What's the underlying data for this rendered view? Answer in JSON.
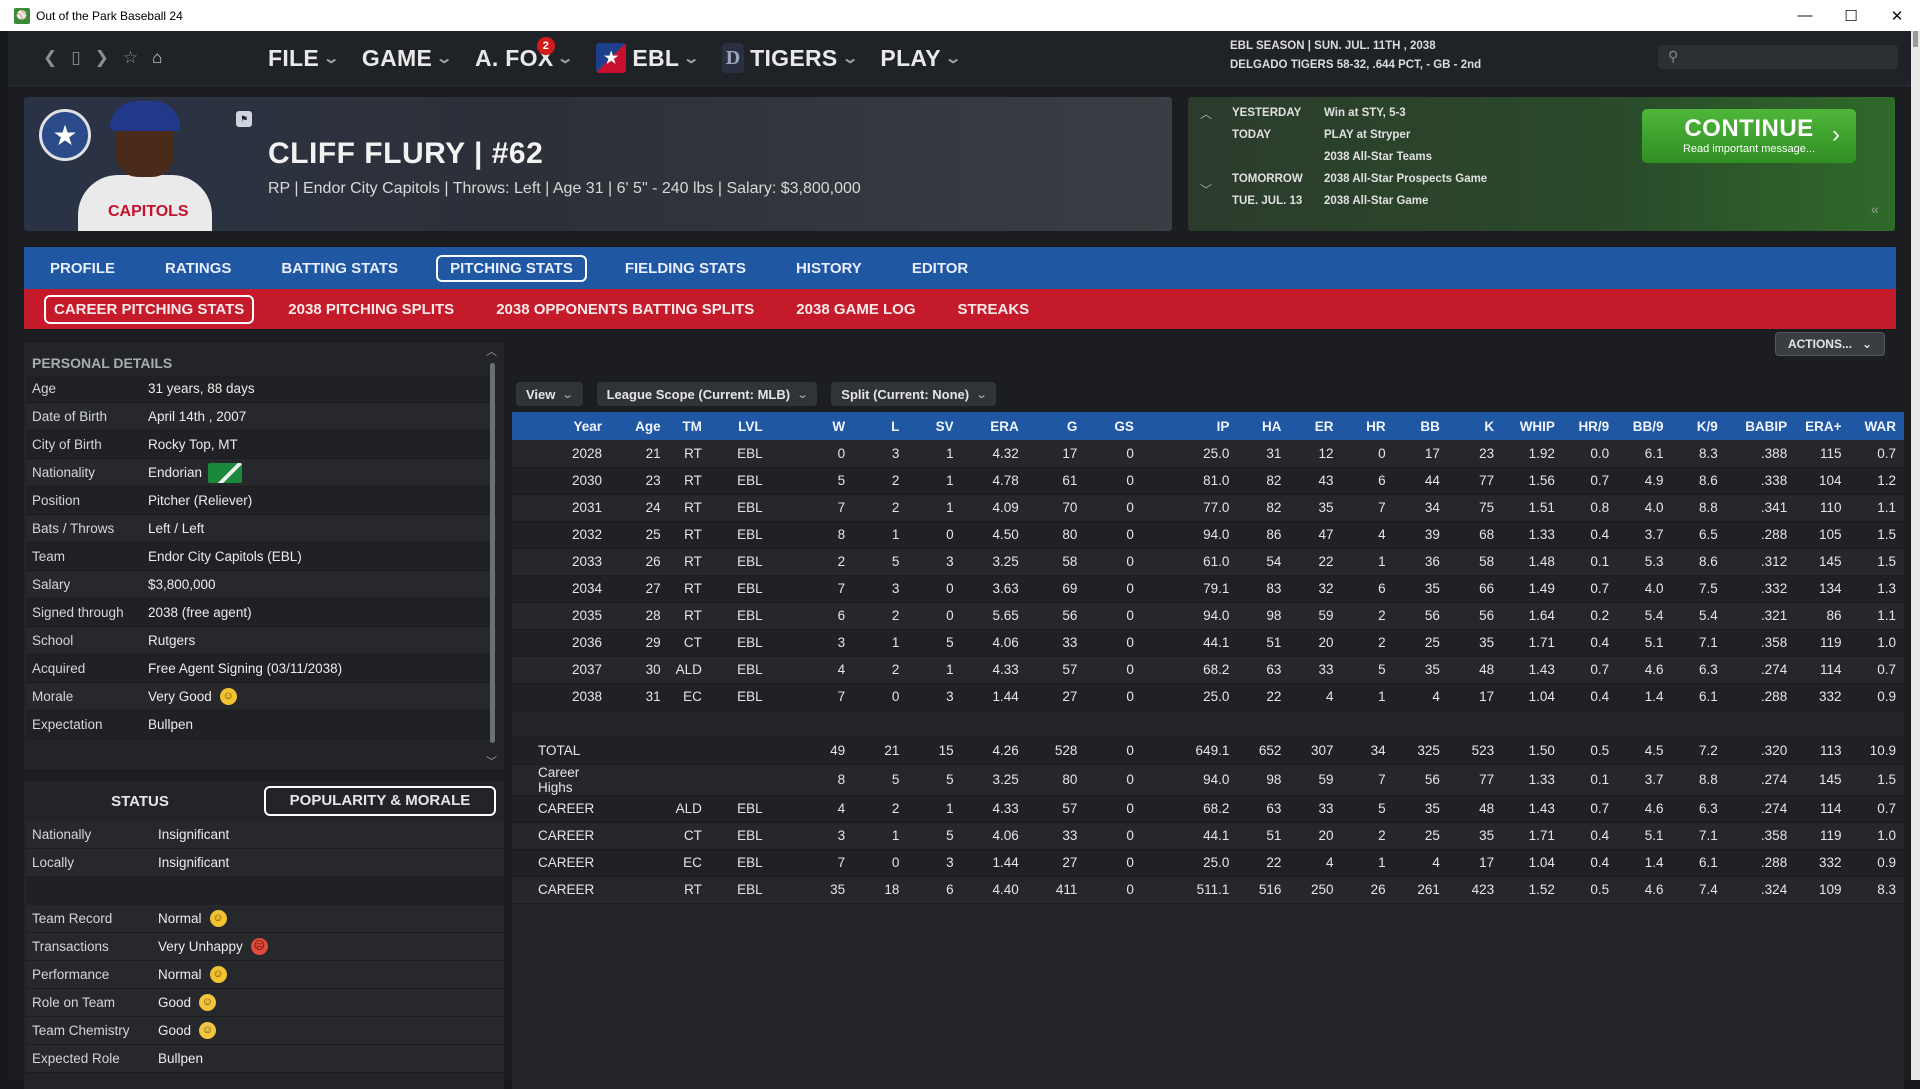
{
  "window": {
    "title": "Out of the Park Baseball 24",
    "minimize": "—",
    "maximize": "☐",
    "close": "✕"
  },
  "nav": {
    "menus": [
      {
        "label": "FILE"
      },
      {
        "label": "GAME"
      },
      {
        "label": "A. FOX",
        "badge": "2"
      },
      {
        "label": "EBL"
      },
      {
        "label": "TIGERS"
      },
      {
        "label": "PLAY"
      }
    ],
    "season_line1": "EBL SEASON  |  SUN. JUL. 11TH , 2038",
    "season_line2": "DELGADO TIGERS  58-32, .644 PCT, - GB - 2nd",
    "search_placeholder": ""
  },
  "player": {
    "name": "CLIFF FLURY  |  #62",
    "subtitle": "RP  |  Endor City Capitols  |  Throws: Left  |  Age 31  |  6' 5\" - 240 lbs  |  Salary: $3,800,000",
    "jersey_text": "CAPITOLS"
  },
  "schedule": [
    {
      "day": "YESTERDAY",
      "event": "Win at STY, 5-3"
    },
    {
      "day": "TODAY",
      "event": "PLAY at Stryper"
    },
    {
      "day": "",
      "event": "2038 All-Star Teams"
    },
    {
      "day": "TOMORROW",
      "event": "2038 All-Star Prospects Game"
    },
    {
      "day": "TUE. JUL. 13",
      "event": "2038 All-Star Game"
    }
  ],
  "continue": {
    "label": "CONTINUE",
    "sub": "Read important message..."
  },
  "tabs_main": [
    "PROFILE",
    "RATINGS",
    "BATTING STATS",
    "PITCHING STATS",
    "FIELDING STATS",
    "HISTORY",
    "EDITOR"
  ],
  "tabs_main_active": 3,
  "tabs_sub": [
    "CAREER PITCHING STATS",
    "2038 PITCHING SPLITS",
    "2038 OPPONENTS BATTING SPLITS",
    "2038 GAME LOG",
    "STREAKS"
  ],
  "actions_label": "ACTIONS...",
  "personal": {
    "heading": "PERSONAL DETAILS",
    "rows": [
      {
        "k": "Age",
        "v": "31 years, 88 days"
      },
      {
        "k": "Date of Birth",
        "v": "April 14th , 2007"
      },
      {
        "k": "City of Birth",
        "v": "Rocky Top, MT"
      },
      {
        "k": "Nationality",
        "v": "Endorian"
      },
      {
        "k": "Position",
        "v": "Pitcher (Reliever)"
      },
      {
        "k": "Bats / Throws",
        "v": "Left / Left"
      },
      {
        "k": "Team",
        "v": "Endor City Capitols (EBL)"
      },
      {
        "k": "Salary",
        "v": "$3,800,000"
      },
      {
        "k": "Signed through",
        "v": "2038 (free agent)"
      },
      {
        "k": "School",
        "v": "Rutgers"
      },
      {
        "k": "Acquired",
        "v": "Free Agent Signing (03/11/2038)"
      },
      {
        "k": "Morale",
        "v": "Very Good"
      },
      {
        "k": "Expectation",
        "v": "Bullpen"
      }
    ]
  },
  "status": {
    "tab1": "STATUS",
    "tab2": "POPULARITY & MORALE",
    "rows_a": [
      {
        "k": "Nationally",
        "v": "Insignificant"
      },
      {
        "k": "Locally",
        "v": "Insignificant"
      }
    ],
    "rows_b": [
      {
        "k": "Team Record",
        "v": "Normal",
        "mood": "normal"
      },
      {
        "k": "Transactions",
        "v": "Very Unhappy",
        "mood": "sad"
      },
      {
        "k": "Performance",
        "v": "Normal",
        "mood": "normal"
      },
      {
        "k": "Role on Team",
        "v": "Good",
        "mood": "good"
      },
      {
        "k": "Team Chemistry",
        "v": "Good",
        "mood": "good"
      },
      {
        "k": "Expected Role",
        "v": "Bullpen",
        "mood": ""
      }
    ]
  },
  "filters": {
    "view": "View",
    "scope": "League Scope (Current: MLB)",
    "split": "Split (Current: None)"
  },
  "stats": {
    "columns": [
      "Year",
      "Age",
      "TM",
      "LVL",
      "W",
      "L",
      "SV",
      "ERA",
      "G",
      "GS",
      "IP",
      "HA",
      "ER",
      "HR",
      "BB",
      "K",
      "WHIP",
      "HR/9",
      "BB/9",
      "K/9",
      "BABIP",
      "ERA+",
      "WAR"
    ],
    "rows": [
      [
        "2028",
        "21",
        "RT",
        "EBL",
        "0",
        "3",
        "1",
        "4.32",
        "17",
        "0",
        "25.0",
        "31",
        "12",
        "0",
        "17",
        "23",
        "1.92",
        "0.0",
        "6.1",
        "8.3",
        ".388",
        "115",
        "0.7"
      ],
      [
        "2030",
        "23",
        "RT",
        "EBL",
        "5",
        "2",
        "1",
        "4.78",
        "61",
        "0",
        "81.0",
        "82",
        "43",
        "6",
        "44",
        "77",
        "1.56",
        "0.7",
        "4.9",
        "8.6",
        ".338",
        "104",
        "1.2"
      ],
      [
        "2031",
        "24",
        "RT",
        "EBL",
        "7",
        "2",
        "1",
        "4.09",
        "70",
        "0",
        "77.0",
        "82",
        "35",
        "7",
        "34",
        "75",
        "1.51",
        "0.8",
        "4.0",
        "8.8",
        ".341",
        "110",
        "1.1"
      ],
      [
        "2032",
        "25",
        "RT",
        "EBL",
        "8",
        "1",
        "0",
        "4.50",
        "80",
        "0",
        "94.0",
        "86",
        "47",
        "4",
        "39",
        "68",
        "1.33",
        "0.4",
        "3.7",
        "6.5",
        ".288",
        "105",
        "1.5"
      ],
      [
        "2033",
        "26",
        "RT",
        "EBL",
        "2",
        "5",
        "3",
        "3.25",
        "58",
        "0",
        "61.0",
        "54",
        "22",
        "1",
        "36",
        "58",
        "1.48",
        "0.1",
        "5.3",
        "8.6",
        ".312",
        "145",
        "1.5"
      ],
      [
        "2034",
        "27",
        "RT",
        "EBL",
        "7",
        "3",
        "0",
        "3.63",
        "69",
        "0",
        "79.1",
        "83",
        "32",
        "6",
        "35",
        "66",
        "1.49",
        "0.7",
        "4.0",
        "7.5",
        ".332",
        "134",
        "1.3"
      ],
      [
        "2035",
        "28",
        "RT",
        "EBL",
        "6",
        "2",
        "0",
        "5.65",
        "56",
        "0",
        "94.0",
        "98",
        "59",
        "2",
        "56",
        "56",
        "1.64",
        "0.2",
        "5.4",
        "5.4",
        ".321",
        "86",
        "1.1"
      ],
      [
        "2036",
        "29",
        "CT",
        "EBL",
        "3",
        "1",
        "5",
        "4.06",
        "33",
        "0",
        "44.1",
        "51",
        "20",
        "2",
        "25",
        "35",
        "1.71",
        "0.4",
        "5.1",
        "7.1",
        ".358",
        "119",
        "1.0"
      ],
      [
        "2037",
        "30",
        "ALD",
        "EBL",
        "4",
        "2",
        "1",
        "4.33",
        "57",
        "0",
        "68.2",
        "63",
        "33",
        "5",
        "35",
        "48",
        "1.43",
        "0.7",
        "4.6",
        "6.3",
        ".274",
        "114",
        "0.7"
      ],
      [
        "2038",
        "31",
        "EC",
        "EBL",
        "7",
        "0",
        "3",
        "1.44",
        "27",
        "0",
        "25.0",
        "22",
        "4",
        "1",
        "4",
        "17",
        "1.04",
        "0.4",
        "1.4",
        "6.1",
        ".288",
        "332",
        "0.9"
      ]
    ],
    "summary": [
      [
        "TOTAL",
        "",
        "",
        "",
        "49",
        "21",
        "15",
        "4.26",
        "528",
        "0",
        "649.1",
        "652",
        "307",
        "34",
        "325",
        "523",
        "1.50",
        "0.5",
        "4.5",
        "7.2",
        ".320",
        "113",
        "10.9"
      ],
      [
        "Career Highs",
        "",
        "",
        "",
        "8",
        "5",
        "5",
        "3.25",
        "80",
        "0",
        "94.0",
        "98",
        "59",
        "7",
        "56",
        "77",
        "1.33",
        "0.1",
        "3.7",
        "8.8",
        ".274",
        "145",
        "1.5"
      ],
      [
        "CAREER",
        "",
        "ALD",
        "EBL",
        "4",
        "2",
        "1",
        "4.33",
        "57",
        "0",
        "68.2",
        "63",
        "33",
        "5",
        "35",
        "48",
        "1.43",
        "0.7",
        "4.6",
        "6.3",
        ".274",
        "114",
        "0.7"
      ],
      [
        "CAREER",
        "",
        "CT",
        "EBL",
        "3",
        "1",
        "5",
        "4.06",
        "33",
        "0",
        "44.1",
        "51",
        "20",
        "2",
        "25",
        "35",
        "1.71",
        "0.4",
        "5.1",
        "7.1",
        ".358",
        "119",
        "1.0"
      ],
      [
        "CAREER",
        "",
        "EC",
        "EBL",
        "7",
        "0",
        "3",
        "1.44",
        "27",
        "0",
        "25.0",
        "22",
        "4",
        "1",
        "4",
        "17",
        "1.04",
        "0.4",
        "1.4",
        "6.1",
        ".288",
        "332",
        "0.9"
      ],
      [
        "CAREER",
        "",
        "RT",
        "EBL",
        "35",
        "18",
        "6",
        "4.40",
        "411",
        "0",
        "511.1",
        "516",
        "250",
        "26",
        "261",
        "423",
        "1.52",
        "0.5",
        "4.6",
        "7.4",
        ".324",
        "109",
        "8.3"
      ]
    ]
  }
}
